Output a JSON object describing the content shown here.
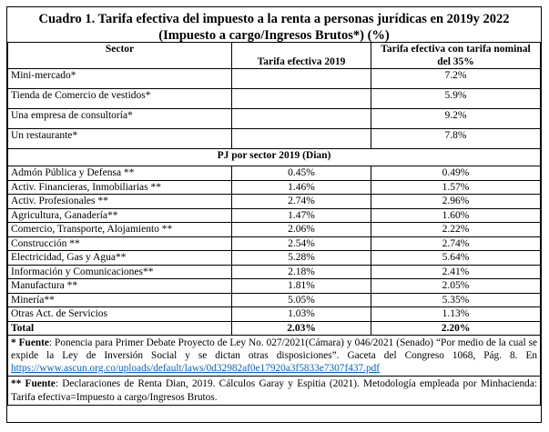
{
  "title": {
    "line1": "Cuadro 1. Tarifa efectiva del impuesto a la renta a personas jurídicas en 2019y 2022",
    "line2": "(Impuesto a cargo/Ingresos Brutos*) (%)"
  },
  "headers": {
    "sector": "Sector",
    "tarifa_efectiva": "Tarifa efectiva 2019",
    "tarifa_nominal_line1": "Tarifa efectiva con tarifa nominal",
    "tarifa_nominal_line2": "del 35%"
  },
  "examples": [
    {
      "sector": "Mini-mercado*",
      "te2019": "",
      "nominal": "7.2%"
    },
    {
      "sector": "Tienda de Comercio de vestidos*",
      "te2019": "",
      "nominal": "5.9%"
    },
    {
      "sector": "Una empresa de consultoría*",
      "te2019": "",
      "nominal": "9.2%"
    },
    {
      "sector": "Un restaurante*",
      "te2019": "",
      "nominal": "7.8%"
    }
  ],
  "pj_header": "PJ por sector 2019 (Dian)",
  "sectors": [
    {
      "sector": "Admón Pública y Defensa **",
      "te2019": "0.45%",
      "nominal": "0.49%"
    },
    {
      "sector": "Activ. Financieras, Inmobiliarias **",
      "te2019": "1.46%",
      "nominal": "1.57%"
    },
    {
      "sector": "Activ. Profesionales **",
      "te2019": "2.74%",
      "nominal": "2.96%"
    },
    {
      "sector": "Agricultura, Ganadería**",
      "te2019": "1.47%",
      "nominal": "1.60%"
    },
    {
      "sector": "Comercio, Transporte, Alojamiento **",
      "te2019": "2.06%",
      "nominal": "2.22%"
    },
    {
      "sector": "Construcción **",
      "te2019": "2.54%",
      "nominal": "2.74%"
    },
    {
      "sector": "Electricidad, Gas y Agua**",
      "te2019": "5.28%",
      "nominal": "5.64%"
    },
    {
      "sector": "Información y Comunicaciones**",
      "te2019": "2.18%",
      "nominal": "2.41%"
    },
    {
      "sector": "Manufactura **",
      "te2019": "1.81%",
      "nominal": "2.05%"
    },
    {
      "sector": "Minería**",
      "te2019": "5.05%",
      "nominal": "5.35%"
    },
    {
      "sector": "Otras Act. de Servicios",
      "te2019": "1.03%",
      "nominal": "1.13%"
    }
  ],
  "total": {
    "label": "Total",
    "te2019": "2.03%",
    "nominal": "2.20%"
  },
  "notes": {
    "note1_label": "* Fuente",
    "note1_text": ": Ponencia para Primer Debate Proyecto de Ley No. 027/2021(Cámara) y 046/2021 (Senado) “Por medio de la cual se expide la Ley de Inversión Social y se dictan otras disposiciones”. Gaceta del Congreso 1068, Pág. 8. En",
    "note1_link": "https://www.ascun.org.co/uploads/default/laws/0d32982af0e17920a3f5833e7307f437.pdf",
    "note2_label": "** Fuente",
    "note2_text": ": Declaraciones de Renta Dian, 2019. Cálculos Garay y Espitia (2021). Metodología empleada por Minhacienda: Tarifa efectiva=Impuesto a cargo/Ingresos Brutos."
  }
}
